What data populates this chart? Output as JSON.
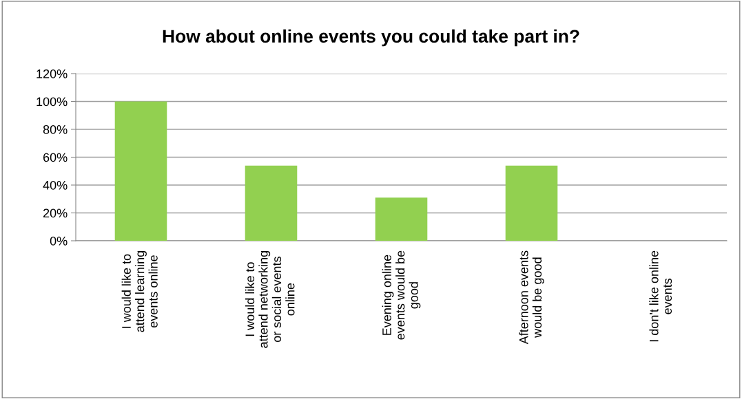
{
  "chart_data": {
    "type": "bar",
    "title": "How about online events you could take part in?",
    "categories": [
      "I would like to\nattend learning\nevents online",
      "I would like to\nattend networking\nor social events\nonline",
      "Evening online\nevents would be\ngood",
      "Afternoon events\nwould be good",
      "I don't like online\nevents"
    ],
    "values": [
      100,
      54,
      31,
      54,
      0
    ],
    "color": "#92d050",
    "ylim": [
      0,
      120
    ],
    "yticks": [
      {
        "value": 0,
        "label": "0%"
      },
      {
        "value": 20,
        "label": "20%"
      },
      {
        "value": 40,
        "label": "40%"
      },
      {
        "value": 60,
        "label": "60%"
      },
      {
        "value": 80,
        "label": "80%"
      },
      {
        "value": 100,
        "label": "100%"
      },
      {
        "value": 120,
        "label": "120%"
      }
    ],
    "grid": "y",
    "legend": false
  }
}
